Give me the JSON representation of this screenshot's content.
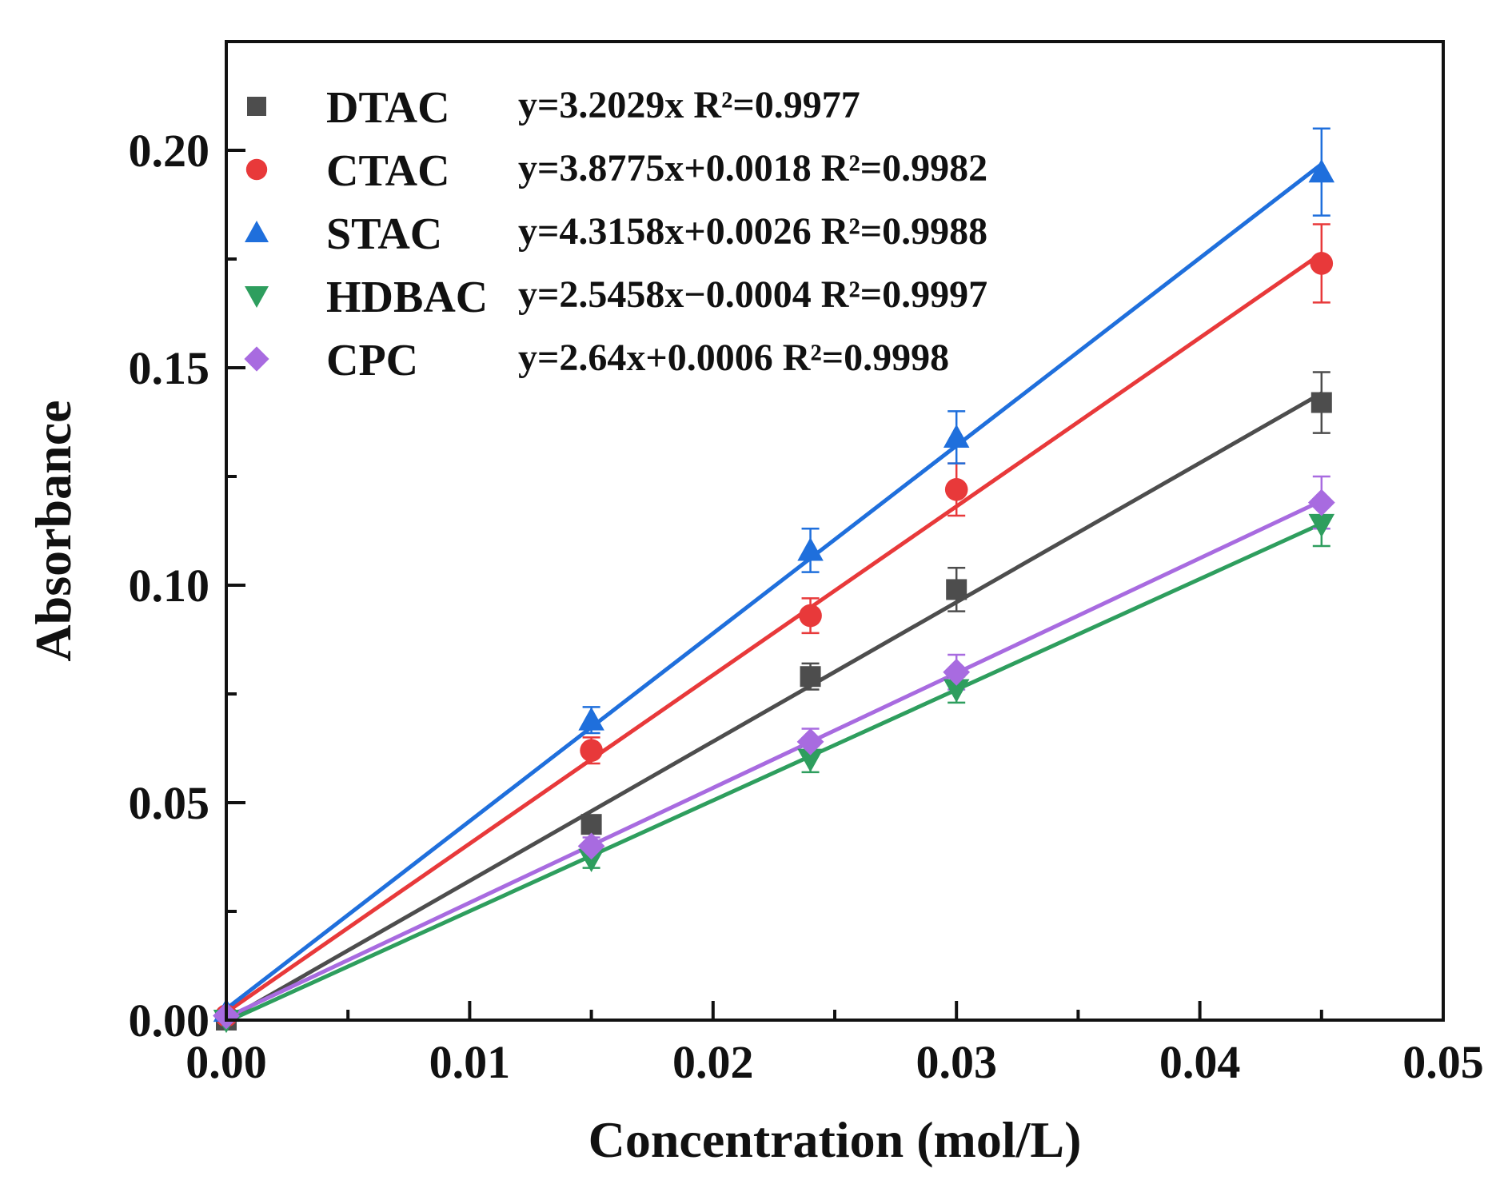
{
  "chart_data": {
    "type": "scatter",
    "title": "",
    "xlabel": "Concentration (mol/L)",
    "ylabel": "Absorbance",
    "xlim": [
      0.0,
      0.05
    ],
    "ylim": [
      0.0,
      0.225
    ],
    "x_ticks": [
      0.0,
      0.01,
      0.02,
      0.03,
      0.04,
      0.05
    ],
    "x_tick_labels": [
      "0.00",
      "0.01",
      "0.02",
      "0.03",
      "0.04",
      "0.05"
    ],
    "y_ticks": [
      0.0,
      0.05,
      0.1,
      0.15,
      0.2
    ],
    "y_tick_labels": [
      "0.00",
      "0.05",
      "0.10",
      "0.15",
      "0.20"
    ],
    "grid": false,
    "legend_position": "top-left",
    "series": [
      {
        "name": "DTAC",
        "equation": "y=3.2029x R²=0.9977",
        "color": "#4d4d4d",
        "marker": "square",
        "x": [
          0.0,
          0.015,
          0.024,
          0.03,
          0.045
        ],
        "y": [
          0.0,
          0.045,
          0.079,
          0.099,
          0.142
        ],
        "err": [
          0.0,
          0.002,
          0.003,
          0.005,
          0.007
        ],
        "fit_slope": 3.2029,
        "fit_intercept": 0.0
      },
      {
        "name": "CTAC",
        "equation": "y=3.8775x+0.0018 R²=0.9982",
        "color": "#e8393a",
        "marker": "circle",
        "x": [
          0.0,
          0.015,
          0.024,
          0.03,
          0.045
        ],
        "y": [
          0.001,
          0.062,
          0.093,
          0.122,
          0.174
        ],
        "err": [
          0.0,
          0.003,
          0.004,
          0.006,
          0.009
        ],
        "fit_slope": 3.8775,
        "fit_intercept": 0.0018
      },
      {
        "name": "STAC",
        "equation": "y=4.3158x+0.0026 R²=0.9988",
        "color": "#1f6fdc",
        "marker": "triangle-up",
        "x": [
          0.0,
          0.015,
          0.024,
          0.03,
          0.045
        ],
        "y": [
          0.002,
          0.069,
          0.108,
          0.134,
          0.195
        ],
        "err": [
          0.0,
          0.003,
          0.005,
          0.006,
          0.01
        ],
        "fit_slope": 4.3158,
        "fit_intercept": 0.0026
      },
      {
        "name": "HDBAC",
        "equation": "y=2.5458x−0.0004 R²=0.9997",
        "color": "#2e9e5e",
        "marker": "triangle-down",
        "x": [
          0.0,
          0.015,
          0.024,
          0.03,
          0.045
        ],
        "y": [
          0.0,
          0.037,
          0.06,
          0.076,
          0.114
        ],
        "err": [
          0.0,
          0.002,
          0.003,
          0.003,
          0.005
        ],
        "fit_slope": 2.5458,
        "fit_intercept": -0.0004
      },
      {
        "name": "CPC",
        "equation": "y=2.64x+0.0006 R²=0.9998",
        "color": "#a86be0",
        "marker": "diamond",
        "x": [
          0.0,
          0.015,
          0.024,
          0.03,
          0.045
        ],
        "y": [
          0.001,
          0.04,
          0.064,
          0.08,
          0.119
        ],
        "err": [
          0.0,
          0.002,
          0.003,
          0.004,
          0.006
        ],
        "fit_slope": 2.64,
        "fit_intercept": 0.0006
      }
    ]
  }
}
